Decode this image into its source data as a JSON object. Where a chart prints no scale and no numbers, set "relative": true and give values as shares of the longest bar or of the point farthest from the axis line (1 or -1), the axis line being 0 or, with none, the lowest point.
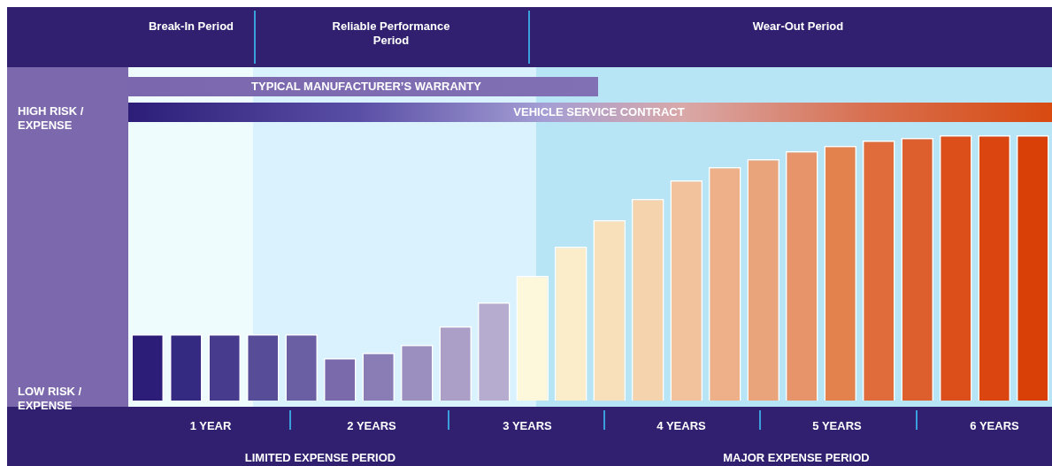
{
  "chart_data": {
    "type": "bar",
    "relative": true,
    "categories": [
      null,
      null,
      null,
      null,
      null,
      null,
      null,
      null,
      null,
      null,
      null,
      null,
      null,
      null,
      null,
      null,
      null,
      null,
      null,
      null,
      null,
      null,
      null,
      null
    ],
    "values": [
      0.25,
      0.25,
      0.25,
      0.25,
      0.25,
      0.16,
      0.18,
      0.21,
      0.28,
      0.37,
      0.47,
      0.58,
      0.68,
      0.76,
      0.83,
      0.88,
      0.91,
      0.94,
      0.96,
      0.98,
      0.99,
      1,
      1,
      1
    ],
    "colors": [
      "#2c1e78",
      "#352a82",
      "#463b8c",
      "#574c98",
      "#6b5fa3",
      "#7a6aab",
      "#8a7db6",
      "#9b8fbf",
      "#ab9fc8",
      "#b5acd0",
      "#fdf8dc",
      "#fbedca",
      "#f8e0bb",
      "#f5d3ad",
      "#f1c29c",
      "#edb089",
      "#eaa47b",
      "#e7946a",
      "#e4824e",
      "#e06c3c",
      "#de5f2e",
      "#dc4e1a",
      "#db4510",
      "#d84008"
    ],
    "legend": false,
    "annotations": [
      "Break-In Period",
      "Reliable Performance Period",
      "Wear-Out Period",
      "HIGH RISK / EXPENSE",
      "LOW RISK / EXPENSE",
      "TYPICAL MANUFACTURER’S WARRANTY",
      "VEHICLE SERVICE CONTRACT",
      "1 YEAR",
      "2 YEARS",
      "3 YEARS",
      "4 YEARS",
      "5 YEARS",
      "6 YEARS",
      "LIMITED EXPENSE PERIOD",
      "MAJOR EXPENSE PERIOD"
    ]
  }
}
